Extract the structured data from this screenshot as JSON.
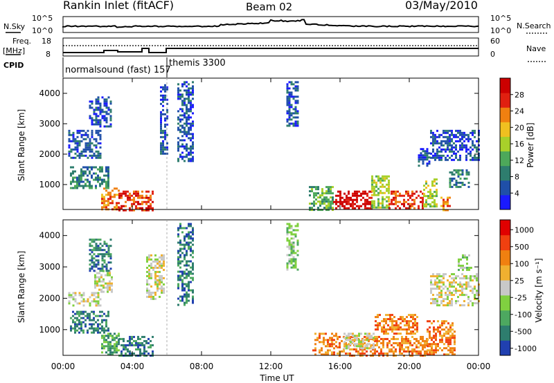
{
  "header": {
    "station": "Rankin Inlet (fitACF)",
    "beam": "Beam 02",
    "date": "03/May/2010"
  },
  "noise_panel": {
    "left_label": "N.Sky",
    "right_label": "N.Search",
    "left_ticks": [
      "10^5",
      "10^0"
    ],
    "right_ticks": [
      "10^5",
      "10^0"
    ]
  },
  "freq_panel": {
    "left_label_line1": "Freq.",
    "left_label_line2": "[MHz]",
    "left_ticks": [
      "18",
      "8"
    ],
    "right_label": "Nave",
    "right_ticks": [
      "60",
      "0"
    ]
  },
  "cpid": {
    "label": "CPID",
    "modes": [
      {
        "text": "normalsound (fast) 157"
      },
      {
        "text": "themis 3300"
      }
    ]
  },
  "time_axis": {
    "label": "Time UT",
    "ticks": [
      "00:00",
      "04:00",
      "08:00",
      "12:00",
      "16:00",
      "20:00",
      "00:00"
    ]
  },
  "chart_data": [
    {
      "type": "heatmap",
      "name": "power",
      "ylabel": "Slant Range [km]",
      "yticks": [
        "1000",
        "2000",
        "3000",
        "4000"
      ],
      "ylim": [
        180,
        4500
      ],
      "xlim_hours": [
        0,
        24
      ],
      "colorbar_label": "Power [dB]",
      "colorbar_ticks": [
        "4",
        "8",
        "12",
        "16",
        "20",
        "24",
        "28"
      ],
      "colorbar_colors": [
        "#1a1aff",
        "#1f4fa8",
        "#2e7d6e",
        "#4da85a",
        "#a8d02a",
        "#f0c020",
        "#f08010",
        "#e02010",
        "#cc0000"
      ],
      "regions": [
        {
          "t0": 0.3,
          "t1": 2.2,
          "r0": 1900,
          "r1": 2800,
          "level": 1
        },
        {
          "t0": 1.5,
          "t1": 2.8,
          "r0": 2900,
          "r1": 3900,
          "level": 1
        },
        {
          "t0": 0.4,
          "t1": 2.6,
          "r0": 900,
          "r1": 1600,
          "level": 2
        },
        {
          "t0": 2.2,
          "t1": 3.2,
          "r0": 180,
          "r1": 900,
          "level": 6
        },
        {
          "t0": 3.2,
          "t1": 5.2,
          "r0": 180,
          "r1": 800,
          "level": 7
        },
        {
          "t0": 5.6,
          "t1": 6.0,
          "r0": 2000,
          "r1": 4300,
          "level": 1
        },
        {
          "t0": 6.6,
          "t1": 7.5,
          "r0": 1800,
          "r1": 4400,
          "level": 1
        },
        {
          "t0": 12.9,
          "t1": 13.6,
          "r0": 2900,
          "r1": 4400,
          "level": 1
        },
        {
          "t0": 14.2,
          "t1": 15.6,
          "r0": 180,
          "r1": 950,
          "level": 3
        },
        {
          "t0": 15.6,
          "t1": 17.8,
          "r0": 250,
          "r1": 800,
          "level": 8
        },
        {
          "t0": 17.8,
          "t1": 18.8,
          "r0": 250,
          "r1": 1300,
          "level": 4
        },
        {
          "t0": 18.8,
          "t1": 20.8,
          "r0": 250,
          "r1": 800,
          "level": 7
        },
        {
          "t0": 20.8,
          "t1": 21.6,
          "r0": 250,
          "r1": 1200,
          "level": 4
        },
        {
          "t0": 21.8,
          "t1": 22.4,
          "r0": 180,
          "r1": 600,
          "level": 6
        },
        {
          "t0": 21.2,
          "t1": 24.0,
          "r0": 1800,
          "r1": 2800,
          "level": 1
        },
        {
          "t0": 22.3,
          "t1": 23.4,
          "r0": 900,
          "r1": 1500,
          "level": 2
        },
        {
          "t0": 20.5,
          "t1": 21.2,
          "r0": 1600,
          "r1": 2200,
          "level": 1
        }
      ]
    },
    {
      "type": "heatmap",
      "name": "velocity",
      "ylabel": "Slant Range [km]",
      "yticks": [
        "1000",
        "2000",
        "3000",
        "4000"
      ],
      "ylim": [
        180,
        4500
      ],
      "xlim_hours": [
        0,
        24
      ],
      "colorbar_label": "Velocity [m s⁻¹]",
      "colorbar_ticks": [
        "1000",
        "500",
        "100",
        "25",
        "-25",
        "-100",
        "-500",
        "-1000"
      ],
      "colorbar_colors": [
        "#2040b0",
        "#2e7d6e",
        "#4da860",
        "#80d040",
        "#c8c8c8",
        "#f0b030",
        "#f08010",
        "#f04010",
        "#e00000"
      ],
      "regions": [
        {
          "t0": 0.3,
          "t1": 2.2,
          "r0": 1750,
          "r1": 2200,
          "level": 4
        },
        {
          "t0": 1.8,
          "t1": 2.8,
          "r0": 2200,
          "r1": 2900,
          "level": 4
        },
        {
          "t0": 1.5,
          "t1": 2.8,
          "r0": 2900,
          "r1": 3900,
          "level": 1
        },
        {
          "t0": 0.4,
          "t1": 2.6,
          "r0": 900,
          "r1": 1600,
          "level": 1
        },
        {
          "t0": 2.2,
          "t1": 3.2,
          "r0": 180,
          "r1": 900,
          "level": 2
        },
        {
          "t0": 3.2,
          "t1": 5.2,
          "r0": 180,
          "r1": 800,
          "level": 1
        },
        {
          "t0": 4.8,
          "t1": 5.8,
          "r0": 2000,
          "r1": 3400,
          "level": 4
        },
        {
          "t0": 6.6,
          "t1": 7.5,
          "r0": 1800,
          "r1": 4400,
          "level": 1
        },
        {
          "t0": 12.9,
          "t1": 13.6,
          "r0": 2900,
          "r1": 4400,
          "level": 3
        },
        {
          "t0": 14.4,
          "t1": 15.8,
          "r0": 180,
          "r1": 900,
          "level": 6
        },
        {
          "t0": 15.8,
          "t1": 21.0,
          "r0": 180,
          "r1": 800,
          "level": 6
        },
        {
          "t0": 16.2,
          "t1": 18.0,
          "r0": 400,
          "r1": 900,
          "level": 4
        },
        {
          "t0": 21.0,
          "t1": 22.6,
          "r0": 180,
          "r1": 1300,
          "level": 6
        },
        {
          "t0": 21.2,
          "t1": 24.0,
          "r0": 1800,
          "r1": 2800,
          "level": 4
        },
        {
          "t0": 22.8,
          "t1": 23.6,
          "r0": 2900,
          "r1": 3400,
          "level": 3
        },
        {
          "t0": 18.0,
          "t1": 20.5,
          "r0": 900,
          "r1": 1500,
          "level": 6
        }
      ]
    }
  ]
}
